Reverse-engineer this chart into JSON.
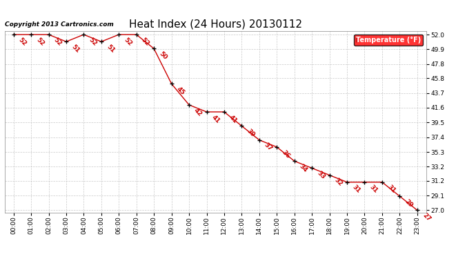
{
  "title": "Heat Index (24 Hours) 20130112",
  "copyright_text": "Copyright 2013 Cartronics.com",
  "legend_label": "Temperature (°F)",
  "x_labels": [
    "00:00",
    "01:00",
    "02:00",
    "03:00",
    "04:00",
    "05:00",
    "06:00",
    "07:00",
    "08:00",
    "09:00",
    "10:00",
    "11:00",
    "12:00",
    "13:00",
    "14:00",
    "15:00",
    "16:00",
    "17:00",
    "18:00",
    "19:00",
    "20:00",
    "21:00",
    "22:00",
    "23:00"
  ],
  "hours": [
    0,
    1,
    2,
    3,
    4,
    5,
    6,
    7,
    8,
    9,
    10,
    11,
    12,
    13,
    14,
    15,
    16,
    17,
    18,
    19,
    20,
    21,
    22,
    23
  ],
  "values": [
    52,
    52,
    52,
    51,
    52,
    51,
    52,
    52,
    50,
    45,
    42,
    41,
    41,
    39,
    37,
    36,
    34,
    33,
    32,
    31,
    31,
    31,
    29,
    27
  ],
  "ylim_min": 27.0,
  "ylim_max": 52.0,
  "y_ticks": [
    27.0,
    29.1,
    31.2,
    33.2,
    35.3,
    37.4,
    39.5,
    41.6,
    43.7,
    45.8,
    47.8,
    49.9,
    52.0
  ],
  "line_color": "#cc0000",
  "marker_color": "#000000",
  "bg_color": "#ffffff",
  "grid_color": "#bbbbbb",
  "label_color": "#cc0000",
  "title_fontsize": 11,
  "label_fontsize": 7,
  "tick_fontsize": 6.5,
  "annotation_fontsize": 6.5,
  "copyright_fontsize": 6.5
}
